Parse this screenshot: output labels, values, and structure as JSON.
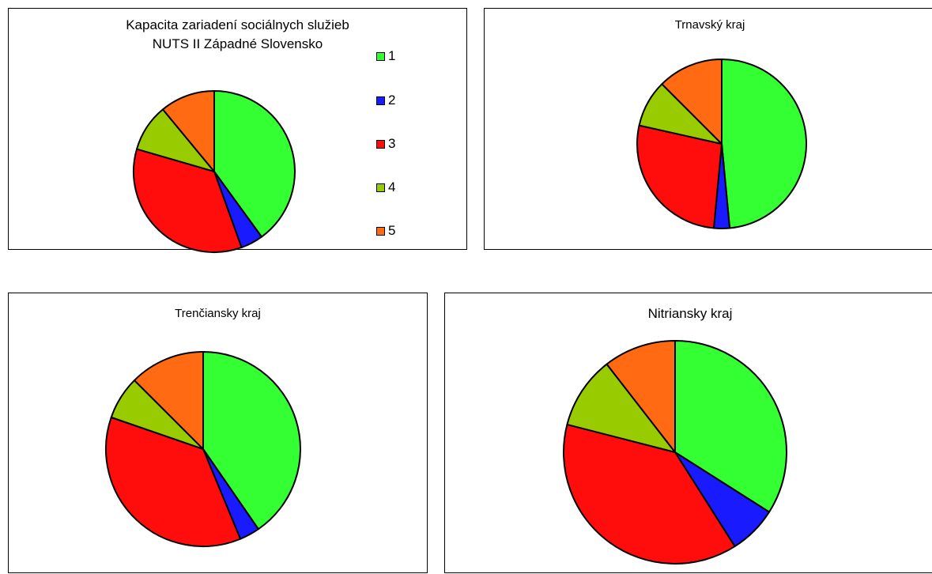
{
  "colors": {
    "1": "#33ff33",
    "2": "#1a1aff",
    "3": "#ff0d0d",
    "4": "#99cc00",
    "5": "#ff6a13"
  },
  "chart_data": [
    {
      "type": "pie",
      "title": "Kapacita zariadení sociálnych služieb",
      "subtitle": "NUTS II Západné Slovensko",
      "categories": [
        "1",
        "2",
        "3",
        "4",
        "5"
      ],
      "values": [
        40,
        4.5,
        35,
        9.5,
        11
      ],
      "legend": "right"
    },
    {
      "type": "pie",
      "title": "Trnavský kraj",
      "categories": [
        "1",
        "2",
        "3",
        "4",
        "5"
      ],
      "values": [
        48.5,
        3,
        27,
        9,
        12.5
      ],
      "legend": "none"
    },
    {
      "type": "pie",
      "title": "Trenčiansky kraj",
      "categories": [
        "1",
        "2",
        "3",
        "4",
        "5"
      ],
      "values": [
        42,
        3.5,
        38,
        7.5,
        13
      ],
      "legend": "none"
    },
    {
      "type": "pie",
      "title": "Nitriansky kraj",
      "categories": [
        "1",
        "2",
        "3",
        "4",
        "5"
      ],
      "values": [
        34,
        7,
        38,
        10.5,
        10.5
      ],
      "legend": "none"
    }
  ],
  "legend": {
    "items": [
      "1",
      "2",
      "3",
      "4",
      "5"
    ]
  }
}
